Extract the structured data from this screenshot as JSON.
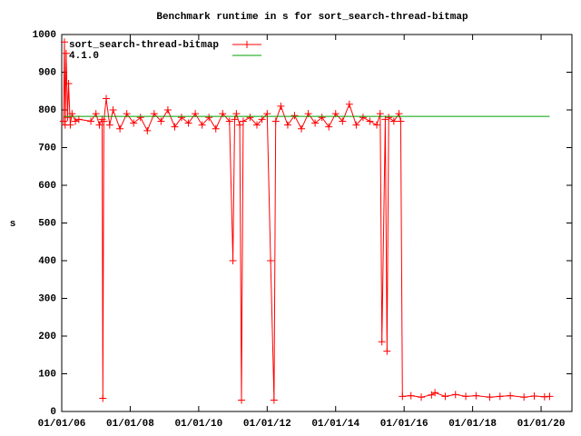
{
  "chart_data": {
    "type": "line",
    "title": "Benchmark runtime in s for sort_search-thread-bitmap",
    "y_label": "s",
    "xlim": [
      2006,
      2020.9
    ],
    "xticks": [
      {
        "value": 2006,
        "label": "01/01/06"
      },
      {
        "value": 2008,
        "label": "01/01/08"
      },
      {
        "value": 2010,
        "label": "01/01/10"
      },
      {
        "value": 2012,
        "label": "01/01/12"
      },
      {
        "value": 2014,
        "label": "01/01/14"
      },
      {
        "value": 2016,
        "label": "01/01/16"
      },
      {
        "value": 2018,
        "label": "01/01/18"
      },
      {
        "value": 2020,
        "label": "01/01/20"
      }
    ],
    "ylim": [
      0,
      1000
    ],
    "yticks": [
      0,
      100,
      200,
      300,
      400,
      500,
      600,
      700,
      800,
      900,
      1000
    ],
    "legend": "top-left",
    "series": [
      {
        "name": "sort_search-thread-bitmap",
        "color": "#ff0000",
        "markers": true,
        "x": [
          2006.05,
          2006.08,
          2006.1,
          2006.13,
          2006.17,
          2006.2,
          2006.25,
          2006.3,
          2006.4,
          2006.5,
          2006.85,
          2007.0,
          2007.1,
          2007.18,
          2007.2,
          2007.23,
          2007.3,
          2007.4,
          2007.5,
          2007.7,
          2007.9,
          2008.1,
          2008.3,
          2008.5,
          2008.7,
          2008.9,
          2009.1,
          2009.3,
          2009.5,
          2009.7,
          2009.9,
          2010.1,
          2010.3,
          2010.5,
          2010.7,
          2010.9,
          2011.0,
          2011.05,
          2011.1,
          2011.2,
          2011.25,
          2011.3,
          2011.5,
          2011.7,
          2011.85,
          2012.0,
          2012.1,
          2012.2,
          2012.25,
          2012.4,
          2012.6,
          2012.8,
          2013.0,
          2013.2,
          2013.4,
          2013.6,
          2013.8,
          2014.0,
          2014.2,
          2014.4,
          2014.6,
          2014.8,
          2015.0,
          2015.2,
          2015.3,
          2015.35,
          2015.45,
          2015.5,
          2015.55,
          2015.7,
          2015.85,
          2015.9,
          2015.95,
          2016.2,
          2016.5,
          2016.8,
          2016.9,
          2017.2,
          2017.5,
          2017.8,
          2018.1,
          2018.5,
          2018.8,
          2019.1,
          2019.5,
          2019.8,
          2020.1,
          2020.25
        ],
        "values": [
          770,
          980,
          760,
          950,
          780,
          870,
          760,
          790,
          770,
          775,
          770,
          790,
          760,
          775,
          35,
          770,
          830,
          760,
          800,
          750,
          790,
          765,
          780,
          745,
          790,
          770,
          800,
          755,
          780,
          765,
          790,
          760,
          780,
          750,
          790,
          770,
          400,
          775,
          790,
          760,
          30,
          770,
          780,
          760,
          775,
          790,
          400,
          30,
          770,
          810,
          760,
          785,
          750,
          790,
          765,
          780,
          755,
          790,
          770,
          815,
          760,
          780,
          770,
          760,
          790,
          185,
          775,
          160,
          780,
          770,
          790,
          770,
          40,
          42,
          38,
          44,
          50,
          40,
          45,
          40,
          42,
          38,
          40,
          42,
          38,
          41,
          39,
          40
        ]
      },
      {
        "name": "4.1.0",
        "color": "#00a000",
        "markers": false,
        "x": [
          2006.05,
          2020.25
        ],
        "values": [
          783,
          783
        ]
      }
    ]
  }
}
